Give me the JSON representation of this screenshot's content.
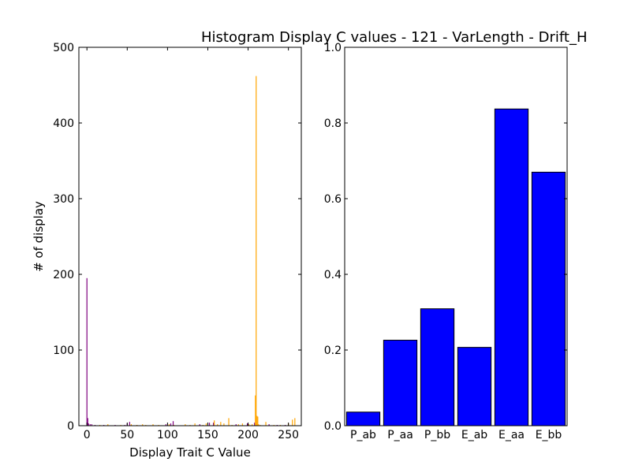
{
  "title": "Histogram Display C values - 121 - VarLength - Drift_H",
  "chart_data": [
    {
      "type": "bar",
      "subtype": "histogram",
      "xlabel": "Display Trait C Value",
      "ylabel": "# of display",
      "xlim": [
        -10,
        266
      ],
      "ylim": [
        0,
        500
      ],
      "xticks": [
        "0",
        "50",
        "100",
        "150",
        "200",
        "250"
      ],
      "yticks": [
        "0",
        "100",
        "200",
        "300",
        "400",
        "500"
      ],
      "grid": false,
      "series": [
        {
          "color": "#800080",
          "x": [
            0,
            1,
            2,
            4,
            6,
            10,
            21,
            35,
            47,
            50,
            53,
            62,
            98,
            104,
            107,
            140,
            152,
            157,
            185,
            199,
            208,
            226,
            236,
            246
          ],
          "values": [
            195,
            10,
            3,
            2,
            2,
            1,
            1,
            1,
            1,
            3,
            5,
            1,
            2,
            3,
            6,
            2,
            4,
            4,
            2,
            3,
            4,
            2,
            1,
            1
          ]
        },
        {
          "color": "#ffa500",
          "x": [
            16,
            26,
            42,
            55,
            62,
            69,
            73,
            82,
            89,
            102,
            108,
            122,
            128,
            134,
            144,
            148,
            158,
            162,
            166,
            170,
            176,
            180,
            188,
            193,
            201,
            205,
            209,
            210,
            211,
            212,
            213,
            215,
            222,
            232,
            240,
            250,
            255,
            258
          ],
          "values": [
            1,
            2,
            1,
            2,
            1,
            2,
            1,
            2,
            1,
            2,
            1,
            2,
            1,
            3,
            1,
            3,
            7,
            2,
            5,
            3,
            10,
            1,
            2,
            3,
            2,
            2,
            40,
            462,
            13,
            12,
            2,
            1,
            5,
            1,
            1,
            3,
            8,
            10
          ]
        }
      ]
    },
    {
      "type": "bar",
      "categories": [
        "P_ab",
        "P_aa",
        "P_bb",
        "E_ab",
        "E_aa",
        "E_bb"
      ],
      "values": [
        0.036,
        0.226,
        0.309,
        0.207,
        0.837,
        0.67
      ],
      "color": "#0000ff",
      "ylim": [
        0,
        1.0
      ],
      "yticks": [
        "0.0",
        "0.2",
        "0.4",
        "0.6",
        "0.8",
        "1.0"
      ],
      "xlabel": "",
      "ylabel": "",
      "grid": false
    }
  ]
}
